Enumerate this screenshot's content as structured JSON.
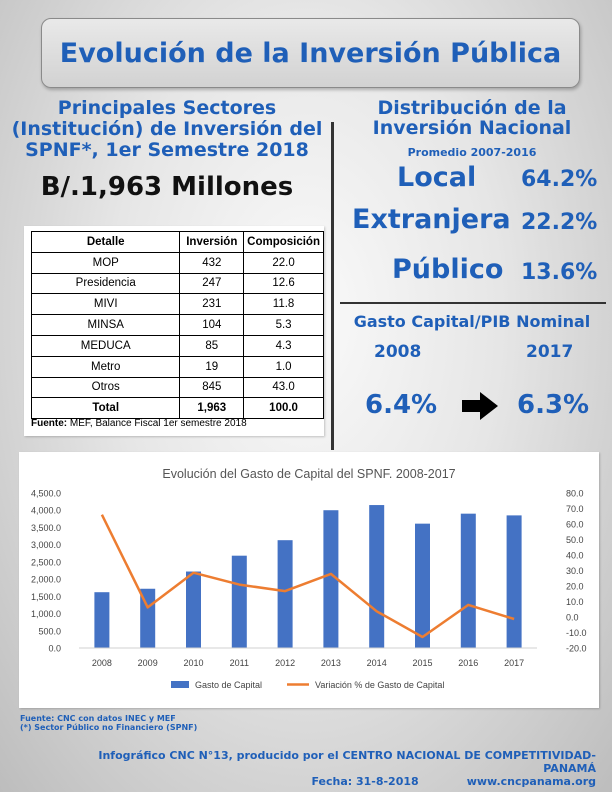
{
  "title": "Evolución de la Inversión Pública",
  "left_heading": [
    "Principales Sectores",
    "(Institución) de Inversión del",
    "SPNF*, 1er Semestre 2018"
  ],
  "total_amount": "B/.1,963 Millones",
  "table": {
    "headers": [
      "Detalle",
      "Inversión",
      "Composición"
    ],
    "rows": [
      [
        "MOP",
        "432",
        "22.0"
      ],
      [
        "Presidencia",
        "247",
        "12.6"
      ],
      [
        "MIVI",
        "231",
        "11.8"
      ],
      [
        "MINSA",
        "104",
        "5.3"
      ],
      [
        "MEDUCA",
        "85",
        "4.3"
      ],
      [
        "Metro",
        "19",
        "1.0"
      ],
      [
        "Otros",
        "845",
        "43.0"
      ]
    ],
    "total": [
      "Total",
      "1,963",
      "100.0"
    ],
    "source_label": "Fuente:",
    "source_text": " MEF, Balance Fiscal 1er semestre 2018"
  },
  "right_heading": [
    "Distribución de la",
    "Inversión Nacional"
  ],
  "right_sub": "Promedio 2007-2016",
  "distribution": [
    {
      "label": "Local",
      "value": "64.2%"
    },
    {
      "label": "Extranjera",
      "value": "22.2%"
    },
    {
      "label": "Público",
      "value": "13.6%"
    }
  ],
  "gasto_heading": "Gasto Capital/PIB Nominal",
  "gasto_years": [
    "2008",
    "2017"
  ],
  "gasto_values": [
    "6.4%",
    "6.3%"
  ],
  "icons": {
    "arrow": "right-arrow-icon"
  },
  "colors": {
    "accent": "#1f5fb8",
    "bar": "#4472c4",
    "line": "#ed7d31"
  },
  "chart_data": {
    "type": "bar",
    "title": "Evolución del Gasto de Capital del SPNF. 2008-2017",
    "categories": [
      "2008",
      "2009",
      "2010",
      "2011",
      "2012",
      "2013",
      "2014",
      "2015",
      "2016",
      "2017"
    ],
    "series": [
      {
        "name": "Gasto de Capital",
        "type": "bar",
        "axis": "left",
        "values": [
          1620,
          1720,
          2220,
          2680,
          3130,
          4000,
          4150,
          3610,
          3900,
          3850
        ]
      },
      {
        "name": "Variación % de Gasto de Capital",
        "type": "line",
        "axis": "right",
        "values": [
          66.0,
          6.2,
          28.6,
          20.9,
          16.7,
          27.8,
          3.7,
          -12.9,
          7.8,
          -1.3
        ]
      }
    ],
    "ylim": [
      0,
      4500
    ],
    "yticks": [
      "4,500.0",
      "4,000.0",
      "3,500.0",
      "3,000.0",
      "2,500.0",
      "2,000.0",
      "1,500.0",
      "1,000.0",
      "500.0",
      "0.0"
    ],
    "y2lim": [
      -20,
      80
    ],
    "y2ticks": [
      "80.0",
      "70.0",
      "60.0",
      "50.0",
      "40.0",
      "30.0",
      "20.0",
      "10.0",
      "0.0",
      "-10.0",
      "-20.0"
    ],
    "legend": "bottom",
    "grid": false
  },
  "footnotes": [
    "Fuente: CNC con datos INEC y MEF",
    "(*) Sector Público no Financiero (SPNF)"
  ],
  "credit": [
    "Infográfico CNC N°13, producido por el CENTRO NACIONAL DE COMPETITIVIDAD-PANAMÁ",
    "Fecha: 31-8-2018",
    "www.cncpanama.org"
  ]
}
